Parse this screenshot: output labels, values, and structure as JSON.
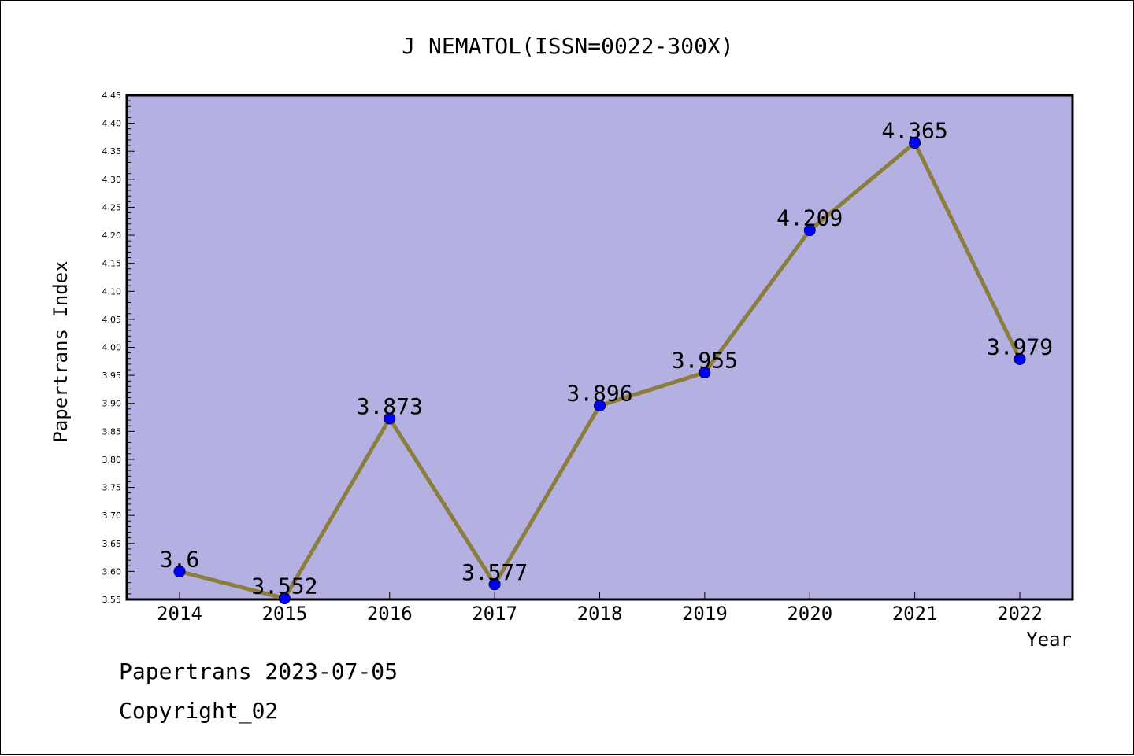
{
  "chart_data": {
    "type": "line",
    "title": "J NEMATOL(ISSN=0022-300X)",
    "xlabel": "Year",
    "ylabel": "Papertrans Index",
    "categories": [
      "2014",
      "2015",
      "2016",
      "2017",
      "2018",
      "2019",
      "2020",
      "2021",
      "2022"
    ],
    "series": [
      {
        "values": [
          3.6,
          3.552,
          3.873,
          3.577,
          3.896,
          3.955,
          4.209,
          4.365,
          3.979
        ],
        "data_labels": [
          "3.6",
          "3.552",
          "3.873",
          "3.577",
          "3.896",
          "3.955",
          "4.209",
          "4.365",
          "3.979"
        ]
      }
    ],
    "ylim": [
      3.55,
      4.45
    ],
    "yticks": [
      "3.55",
      "3.60",
      "3.65",
      "3.70",
      "3.75",
      "3.80",
      "3.85",
      "3.90",
      "3.95",
      "4.00",
      "4.05",
      "4.10",
      "4.15",
      "4.20",
      "4.25",
      "4.30",
      "4.35",
      "4.40",
      "4.45"
    ],
    "grid": false,
    "colors": {
      "plot_background": "#b5b0e2",
      "line": "#8b7d3c",
      "marker": "#0000ff"
    }
  },
  "footer": {
    "line1": "Papertrans 2023-07-05",
    "line2": "Copyright_02"
  }
}
